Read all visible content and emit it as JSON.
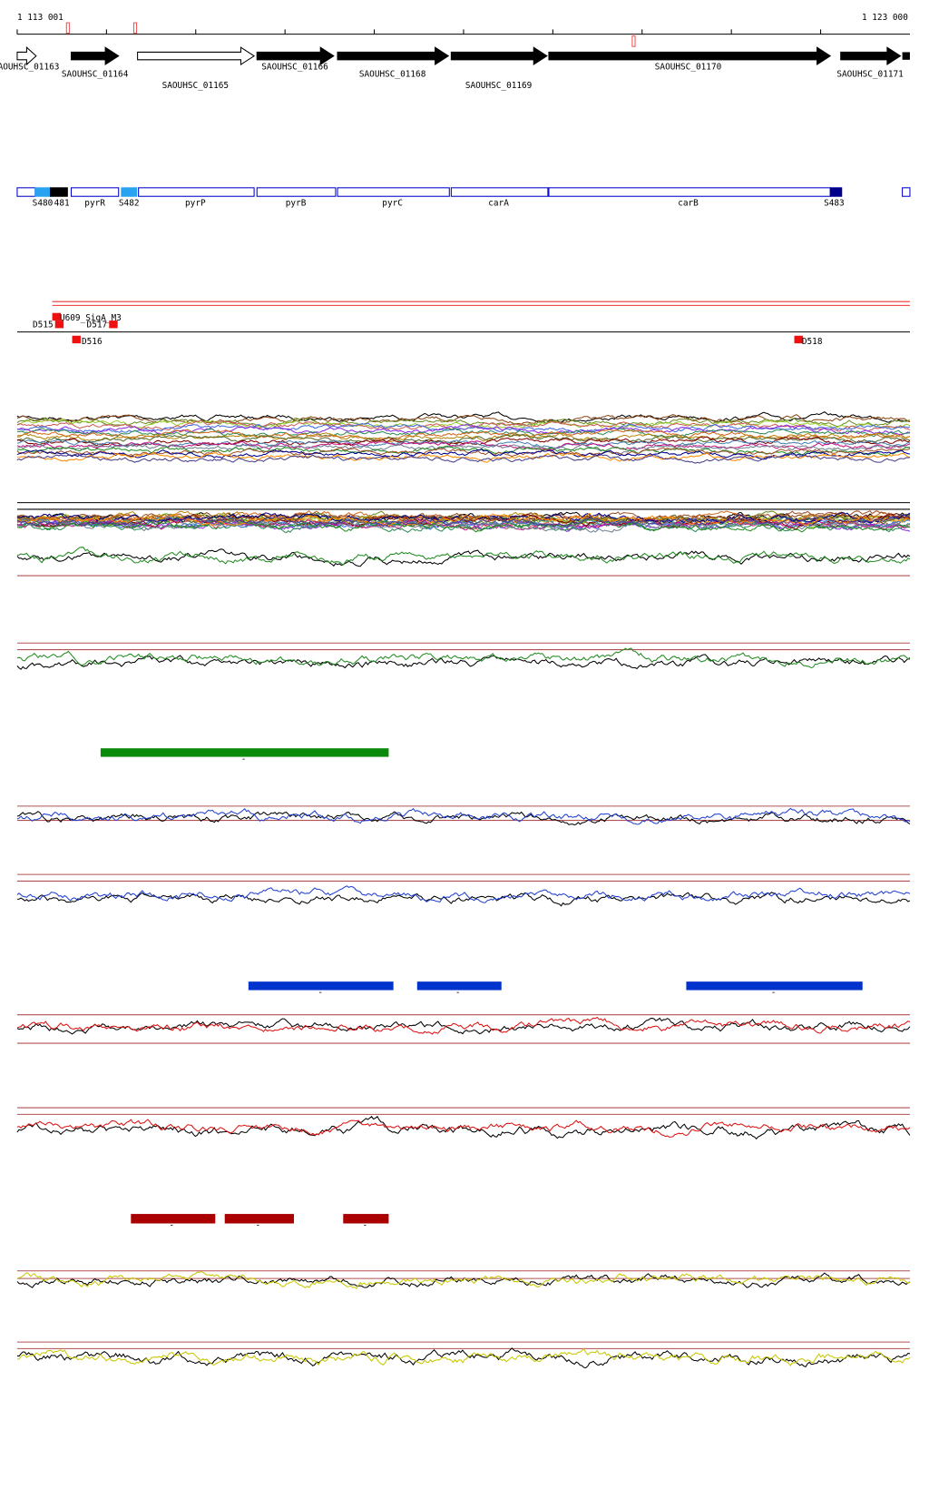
{
  "ruler": {
    "start": "1 113 001",
    "end": "1 123 000"
  },
  "genes": [
    {
      "label": "AOUHSC_01163"
    },
    {
      "label": "SAOUHSC_01164"
    },
    {
      "label": "SAOUHSC_01165"
    },
    {
      "label": "SAOUHSC_01166"
    },
    {
      "label": "SAOUHSC_01168"
    },
    {
      "label": "SAOUHSC_01169"
    },
    {
      "label": "SAOUHSC_01170"
    },
    {
      "label": "SAOUHSC_01171"
    }
  ],
  "features": [
    {
      "label": "S480"
    },
    {
      "label": "481"
    },
    {
      "label": "pyrR"
    },
    {
      "label": "S482"
    },
    {
      "label": "pyrP"
    },
    {
      "label": "pyrB"
    },
    {
      "label": "pyrC"
    },
    {
      "label": "carA"
    },
    {
      "label": "carB"
    },
    {
      "label": "S483"
    }
  ],
  "sites": [
    {
      "label": "U609_SigA_M3"
    },
    {
      "label": "D515"
    },
    {
      "label": "D517"
    },
    {
      "label": "D516"
    },
    {
      "label": "D518"
    }
  ],
  "segments": [
    {
      "label": "-"
    },
    {
      "label": "-"
    },
    {
      "label": "-"
    },
    {
      "label": "-"
    },
    {
      "label": "-"
    },
    {
      "label": "-"
    },
    {
      "label": "-"
    }
  ]
}
